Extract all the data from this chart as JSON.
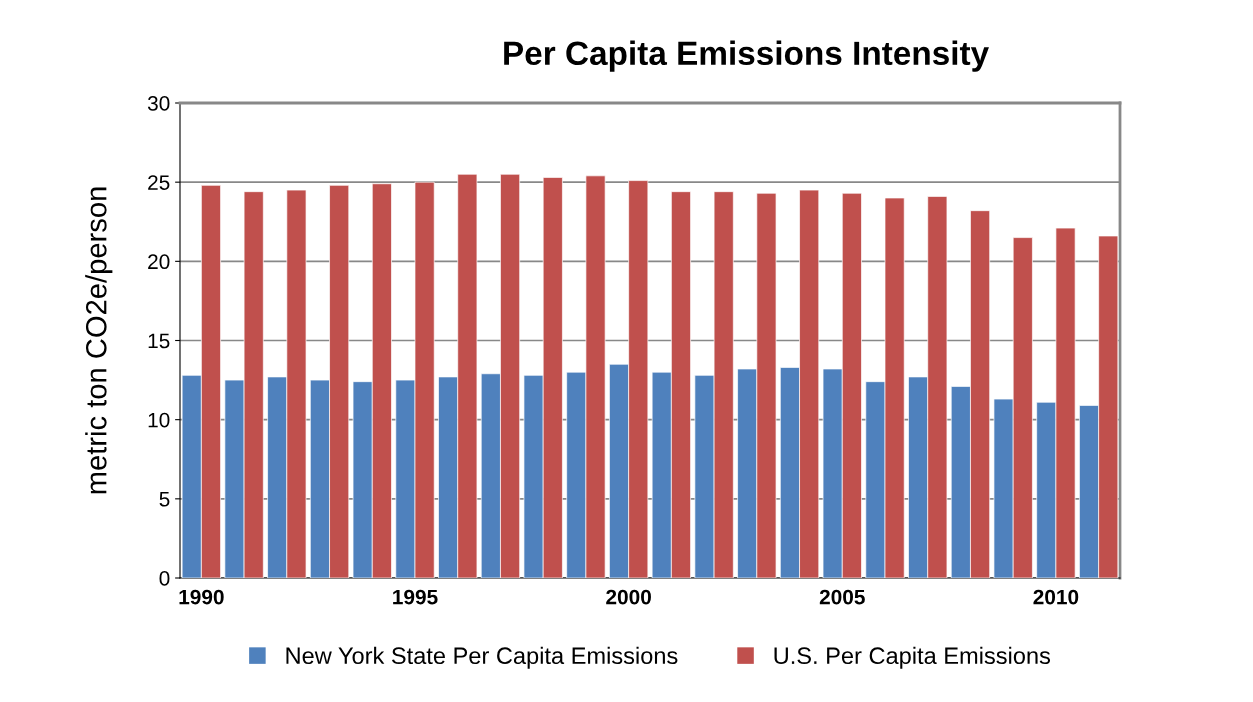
{
  "chart_data": {
    "type": "bar",
    "title": "Per Capita Emissions Intensity",
    "ylabel": "metric ton CO2e/person",
    "categories": [
      "1990",
      null,
      null,
      null,
      null,
      "1995",
      null,
      null,
      null,
      null,
      "2000",
      null,
      null,
      null,
      null,
      "2005",
      null,
      null,
      null,
      null,
      "2010",
      null
    ],
    "series": [
      {
        "name": "New York State Per Capita Emissions",
        "color": "#4f81bd",
        "values": [
          12.8,
          12.5,
          12.7,
          12.5,
          12.4,
          12.5,
          12.7,
          12.9,
          12.8,
          13.0,
          13.5,
          13.0,
          12.8,
          13.2,
          13.3,
          13.2,
          12.4,
          12.7,
          12.1,
          11.3,
          11.1,
          10.9
        ]
      },
      {
        "name": "U.S. Per Capita Emissions",
        "color": "#c0504d",
        "values": [
          24.8,
          24.4,
          24.5,
          24.8,
          24.9,
          25.0,
          25.5,
          25.5,
          25.3,
          25.4,
          25.1,
          24.4,
          24.4,
          24.3,
          24.5,
          24.3,
          24.0,
          24.1,
          23.2,
          21.5,
          22.1,
          21.6
        ]
      }
    ],
    "ylim": [
      0,
      30
    ],
    "yticks": [
      0,
      5,
      10,
      15,
      20,
      25,
      30
    ],
    "grid": "y",
    "legend": "bottom"
  }
}
